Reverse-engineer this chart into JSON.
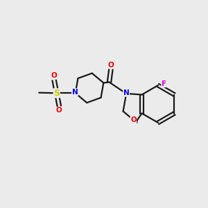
{
  "background_color": "#ebebeb",
  "bond_color": "#1a1a1a",
  "atom_colors": {
    "N": "#0000ee",
    "O": "#ee0000",
    "F": "#dd00dd",
    "S": "#cccc00",
    "C": "#1a1a1a"
  },
  "figsize": [
    3.0,
    3.0
  ],
  "dpi": 100
}
